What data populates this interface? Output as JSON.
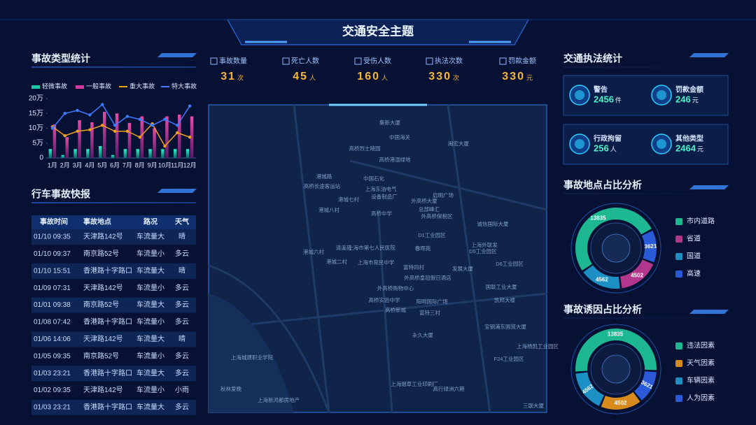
{
  "header": {
    "title": "交通安全主题"
  },
  "kpis": [
    {
      "label": "事故数量",
      "value": 31,
      "unit": "次"
    },
    {
      "label": "死亡人数",
      "value": 45,
      "unit": "人"
    },
    {
      "label": "受伤人数",
      "value": 160,
      "unit": "人"
    },
    {
      "label": "执法次数",
      "value": 330,
      "unit": "次"
    },
    {
      "label": "罚款金额",
      "value": 330,
      "unit": "元"
    }
  ],
  "chart_data": [
    {
      "type": "bar",
      "title": "事故类型统计",
      "categories": [
        "1月",
        "2月",
        "3月",
        "4月",
        "5月",
        "6月",
        "7月",
        "8月",
        "9月",
        "10月",
        "11月",
        "12月"
      ],
      "series": [
        {
          "name": "轻微事故",
          "type": "bar",
          "color": "#19c9a6",
          "values": [
            3,
            1,
            3,
            3,
            4,
            1,
            3,
            3,
            3,
            3,
            3,
            3
          ]
        },
        {
          "name": "一般事故",
          "type": "bar",
          "color": "#d63a9f",
          "values": [
            11.3,
            7,
            12.7,
            12,
            15.5,
            15,
            11.8,
            14,
            10,
            14,
            14.6,
            14
          ]
        },
        {
          "name": "重大事故",
          "type": "line",
          "color": "#f0a020",
          "values": [
            10.5,
            7.5,
            9,
            9.5,
            11,
            9,
            9,
            7,
            11.5,
            4,
            8.5,
            7
          ]
        },
        {
          "name": "特大事故",
          "type": "line",
          "color": "#3d7bff",
          "values": [
            10,
            15,
            16,
            14.5,
            18,
            11,
            14,
            13,
            11,
            13,
            11,
            17.5
          ]
        }
      ],
      "ylim": [
        0,
        20
      ],
      "yticks": [
        0,
        {
          "value": 5,
          "label": "5万"
        },
        {
          "value": 10,
          "label": "10万"
        },
        {
          "value": 15,
          "label": "15万"
        },
        {
          "value": 20,
          "label": "20万"
        }
      ],
      "grid": false,
      "legend": "top"
    },
    {
      "type": "pie",
      "title": "事故地点占比分析",
      "donut": true,
      "categories": [
        "市内道路",
        "省道",
        "国道",
        "高速"
      ],
      "values": [
        13835,
        4502,
        4562,
        3621
      ],
      "colors": [
        "#1db892",
        "#b2378c",
        "#1c8fc4",
        "#2a5ad8"
      ]
    },
    {
      "type": "pie",
      "title": "事故诱因占比分析",
      "donut": true,
      "categories": [
        "违法因素",
        "天气因素",
        "车辆因素",
        "人为因素"
      ],
      "values": [
        13835,
        4502,
        4562,
        3621
      ],
      "colors": [
        "#1db892",
        "#d78b1c",
        "#1c8fc4",
        "#2a5ad8"
      ]
    }
  ],
  "accident_table": {
    "title": "行车事故快报",
    "columns": [
      "事故时间",
      "事故地点",
      "路况",
      "天气"
    ],
    "rows": [
      [
        "01/10 09:35",
        "天津路142号",
        "车流量大",
        "晴"
      ],
      [
        "01/10 09:37",
        "南京路52号",
        "车流量小",
        "多云"
      ],
      [
        "01/10 15:51",
        "香港路十字路口",
        "车流量大",
        "晴"
      ],
      [
        "01/09 07:31",
        "天津路142号",
        "车流量小",
        "多云"
      ],
      [
        "01/01 09:38",
        "南京路52号",
        "车流量大",
        "多云"
      ],
      [
        "01/08 07:42",
        "香港路十字路口",
        "车流量小",
        "多云"
      ],
      [
        "01/06 14:06",
        "天津路142号",
        "车流量大",
        "晴"
      ],
      [
        "01/05 09:35",
        "南京路52号",
        "车流量小",
        "多云"
      ],
      [
        "01/03 23:21",
        "香港路十字路口",
        "车流量大",
        "多云"
      ],
      [
        "01/02 09:35",
        "天津路142号",
        "车流量小",
        "小雨"
      ],
      [
        "01/03 23:21",
        "香港路十字路口",
        "车流量大",
        "多云"
      ]
    ]
  },
  "enforcement": {
    "title": "交通执法统计",
    "items": [
      {
        "label": "警告",
        "value": 2456,
        "unit": "件"
      },
      {
        "label": "罚款金额",
        "value": 246,
        "unit": "元"
      },
      {
        "label": "行政拘留",
        "value": 256,
        "unit": "人"
      },
      {
        "label": "其他类型",
        "value": 2464,
        "unit": "元"
      }
    ]
  },
  "map": {
    "labels": [
      "集新大厦",
      "中国海关",
      "闽宏大厦",
      "高桥烈士陵园",
      "高桥港湿绿地",
      "港城路",
      "中国石化",
      "高桥长途客运站",
      "上海东油电气",
      "设备制造厂",
      "港城七村",
      "外高桥大厦",
      "启明广场",
      "总部峰汇",
      "外高桥保税区",
      "港城八村",
      "高桥中学",
      "诚信国际大厦",
      "D1工业园区",
      "港城六村",
      "清溪苑",
      "上海市第七人民医院",
      "春晖苑",
      "D5工业园区",
      "上海外联发",
      "港城二村",
      "上海市育民中学",
      "D6工业园区",
      "富特四村",
      "外高桥皇冠假日酒店",
      "发展大厦",
      "外高桥购物中心",
      "高桥实验中学",
      "国联工业大厦",
      "阳明国际广场",
      "凯邦大楼",
      "高桥新城",
      "富特三村",
      "宝钢浦东国贸大厦",
      "永久大厦",
      "上海杨凯工业园区",
      "F24工业园区",
      "上海城建职业学院",
      "秋林爱晚",
      "上海烟草工业印刷厂",
      "高行绿洲六期",
      "上海新鸿都房地产",
      "三联大厦"
    ]
  }
}
